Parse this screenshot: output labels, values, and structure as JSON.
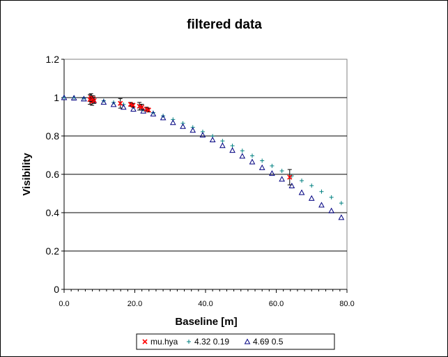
{
  "chart_data": {
    "type": "scatter",
    "title": "filtered data",
    "xlabel": "Baseline [m]",
    "ylabel": "Visibility",
    "xlim": [
      0,
      80
    ],
    "ylim": [
      0,
      1.2
    ],
    "xticks": [
      "0.0",
      "20.0",
      "40.0",
      "60.0",
      "80.0"
    ],
    "yticks": [
      "0",
      "0.2",
      "0.4",
      "0.6",
      "0.8",
      "1",
      "1.2"
    ],
    "grid": "horizontal",
    "legend_position": "bottom",
    "series": [
      {
        "name": "mu.hya",
        "marker": "x",
        "color": "#ff0000",
        "points": [
          {
            "x": 7.3,
            "y": 0.99,
            "err": 0.025
          },
          {
            "x": 7.6,
            "y": 1.0,
            "err": 0.02
          },
          {
            "x": 7.9,
            "y": 0.98,
            "err": 0.02
          },
          {
            "x": 8.2,
            "y": 0.995,
            "err": 0.015
          },
          {
            "x": 8.5,
            "y": 0.985,
            "err": 0.015
          },
          {
            "x": 15.9,
            "y": 0.97,
            "err": 0.025
          },
          {
            "x": 18.8,
            "y": 0.965,
            "err": 0.01
          },
          {
            "x": 19.5,
            "y": 0.96,
            "err": 0.01
          },
          {
            "x": 21.3,
            "y": 0.955,
            "err": 0.02
          },
          {
            "x": 22.0,
            "y": 0.95,
            "err": 0.015
          },
          {
            "x": 23.3,
            "y": 0.94,
            "err": 0.01
          },
          {
            "x": 23.9,
            "y": 0.935,
            "err": 0.01
          },
          {
            "x": 63.8,
            "y": 0.585,
            "err": 0.04
          }
        ]
      },
      {
        "name": "4.32 0.19",
        "marker": "+",
        "color": "#008080",
        "points": [
          {
            "x": 0.0,
            "y": 1.0
          },
          {
            "x": 2.8,
            "y": 1.0
          },
          {
            "x": 5.6,
            "y": 0.997
          },
          {
            "x": 8.4,
            "y": 0.99
          },
          {
            "x": 11.2,
            "y": 0.984
          },
          {
            "x": 14.0,
            "y": 0.975
          },
          {
            "x": 16.8,
            "y": 0.964
          },
          {
            "x": 19.6,
            "y": 0.952
          },
          {
            "x": 22.4,
            "y": 0.938
          },
          {
            "x": 25.2,
            "y": 0.922
          },
          {
            "x": 28.0,
            "y": 0.905
          },
          {
            "x": 30.8,
            "y": 0.886
          },
          {
            "x": 33.6,
            "y": 0.866
          },
          {
            "x": 36.4,
            "y": 0.845
          },
          {
            "x": 39.2,
            "y": 0.822
          },
          {
            "x": 42.0,
            "y": 0.799
          },
          {
            "x": 44.8,
            "y": 0.774
          },
          {
            "x": 47.6,
            "y": 0.749
          },
          {
            "x": 50.4,
            "y": 0.723
          },
          {
            "x": 53.2,
            "y": 0.697
          },
          {
            "x": 56.0,
            "y": 0.671
          },
          {
            "x": 58.8,
            "y": 0.644
          },
          {
            "x": 61.6,
            "y": 0.618
          },
          {
            "x": 64.4,
            "y": 0.592
          },
          {
            "x": 67.2,
            "y": 0.567
          },
          {
            "x": 70.0,
            "y": 0.541
          },
          {
            "x": 72.8,
            "y": 0.51
          },
          {
            "x": 75.6,
            "y": 0.48
          },
          {
            "x": 78.4,
            "y": 0.45
          }
        ]
      },
      {
        "name": "4.69 0.5",
        "marker": "triangle",
        "color": "#000080",
        "points": [
          {
            "x": 0.0,
            "y": 1.0
          },
          {
            "x": 2.8,
            "y": 0.998
          },
          {
            "x": 5.6,
            "y": 0.993
          },
          {
            "x": 8.4,
            "y": 0.985
          },
          {
            "x": 11.2,
            "y": 0.976
          },
          {
            "x": 14.0,
            "y": 0.964
          },
          {
            "x": 16.8,
            "y": 0.95
          },
          {
            "x": 19.6,
            "y": 0.94
          },
          {
            "x": 22.4,
            "y": 0.93
          },
          {
            "x": 25.2,
            "y": 0.915
          },
          {
            "x": 28.0,
            "y": 0.895
          },
          {
            "x": 30.8,
            "y": 0.87
          },
          {
            "x": 33.6,
            "y": 0.85
          },
          {
            "x": 36.4,
            "y": 0.83
          },
          {
            "x": 39.2,
            "y": 0.805
          },
          {
            "x": 42.0,
            "y": 0.78
          },
          {
            "x": 44.8,
            "y": 0.75
          },
          {
            "x": 47.6,
            "y": 0.725
          },
          {
            "x": 50.4,
            "y": 0.695
          },
          {
            "x": 53.2,
            "y": 0.665
          },
          {
            "x": 56.0,
            "y": 0.635
          },
          {
            "x": 58.8,
            "y": 0.605
          },
          {
            "x": 61.6,
            "y": 0.575
          },
          {
            "x": 64.4,
            "y": 0.54
          },
          {
            "x": 67.2,
            "y": 0.505
          },
          {
            "x": 70.0,
            "y": 0.475
          },
          {
            "x": 72.8,
            "y": 0.44
          },
          {
            "x": 75.6,
            "y": 0.41
          },
          {
            "x": 78.4,
            "y": 0.375
          }
        ]
      }
    ]
  }
}
